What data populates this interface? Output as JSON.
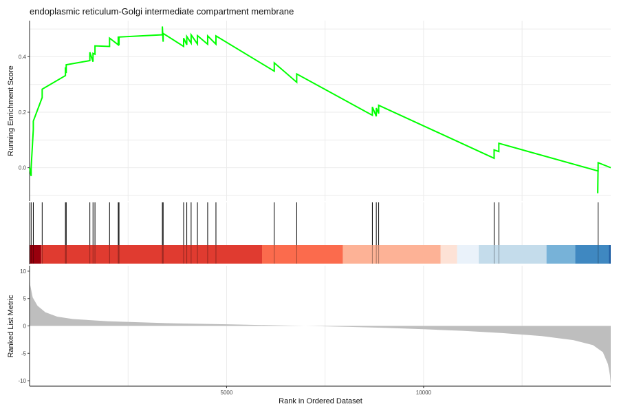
{
  "chart_data": {
    "type": "line",
    "title": "endoplasmic reticulum-Golgi intermediate compartment membrane",
    "xlabel": "Rank in Ordered Dataset",
    "xlim": [
      0,
      14750
    ],
    "x_ticks": [
      5000,
      10000
    ],
    "x_tick_labels": [
      "5000",
      "10000"
    ],
    "grid": true,
    "es_panel": {
      "ylabel": "Running Enrichment Score",
      "ylim": [
        -0.12,
        0.53
      ],
      "y_ticks": [
        0.0,
        0.2,
        0.4
      ],
      "y_tick_labels": [
        "0.0",
        "0.2",
        "0.4"
      ],
      "line_color": "#00ff00",
      "hits": [
        40,
        95,
        320,
        910,
        930,
        1530,
        1610,
        1660,
        2030,
        2250,
        2270,
        3370,
        3390,
        3910,
        3990,
        4100,
        4260,
        4520,
        4730,
        6210,
        6780,
        8700,
        8800,
        8860,
        11790,
        11910,
        14430
      ],
      "peaks": [
        0.0,
        0.168,
        0.283,
        0.362,
        0.371,
        0.416,
        0.412,
        0.439,
        0.467,
        0.473,
        0.471,
        0.509,
        0.484,
        0.467,
        0.473,
        0.479,
        0.476,
        0.475,
        0.475,
        0.378,
        0.338,
        0.219,
        0.215,
        0.225,
        0.064,
        0.088,
        0.018
      ],
      "end_point": [
        14750,
        0.0
      ]
    },
    "color_bar": [
      {
        "start": 0,
        "end": 280,
        "color": "#99000d"
      },
      {
        "start": 280,
        "end": 300,
        "color": "#b51217"
      },
      {
        "start": 300,
        "end": 5900,
        "color": "#e03b30"
      },
      {
        "start": 5900,
        "end": 7950,
        "color": "#fb6b4d"
      },
      {
        "start": 7950,
        "end": 10430,
        "color": "#fdb296"
      },
      {
        "start": 10430,
        "end": 10850,
        "color": "#fde2d6"
      },
      {
        "start": 10850,
        "end": 11400,
        "color": "#eaf2fa"
      },
      {
        "start": 11400,
        "end": 13120,
        "color": "#c4dceb"
      },
      {
        "start": 13120,
        "end": 13850,
        "color": "#77b2d8"
      },
      {
        "start": 13850,
        "end": 14700,
        "color": "#3f88c1"
      },
      {
        "start": 14700,
        "end": 14750,
        "color": "#1f5fa5"
      }
    ],
    "metric_panel": {
      "ylabel": "Ranked List Metric",
      "ylim": [
        -11,
        11
      ],
      "y_ticks": [
        10,
        5,
        0,
        -5,
        -10
      ],
      "y_tick_labels": [
        "10",
        "5",
        "0",
        "-5",
        "-10"
      ],
      "fill_color": "#bebebe",
      "profile": [
        [
          0,
          10.0
        ],
        [
          15,
          7.5
        ],
        [
          80,
          5.2
        ],
        [
          200,
          3.7
        ],
        [
          400,
          2.5
        ],
        [
          700,
          1.7
        ],
        [
          1100,
          1.25
        ],
        [
          2000,
          0.85
        ],
        [
          3500,
          0.5
        ],
        [
          5000,
          0.3
        ],
        [
          6200,
          0.12
        ],
        [
          7000,
          0.0
        ],
        [
          8000,
          -0.15
        ],
        [
          9000,
          -0.35
        ],
        [
          10000,
          -0.6
        ],
        [
          11000,
          -0.9
        ],
        [
          12000,
          -1.3
        ],
        [
          13000,
          -1.85
        ],
        [
          13800,
          -2.6
        ],
        [
          14300,
          -3.5
        ],
        [
          14550,
          -4.8
        ],
        [
          14680,
          -7.0
        ],
        [
          14730,
          -9.0
        ],
        [
          14750,
          -10.8
        ]
      ]
    }
  }
}
